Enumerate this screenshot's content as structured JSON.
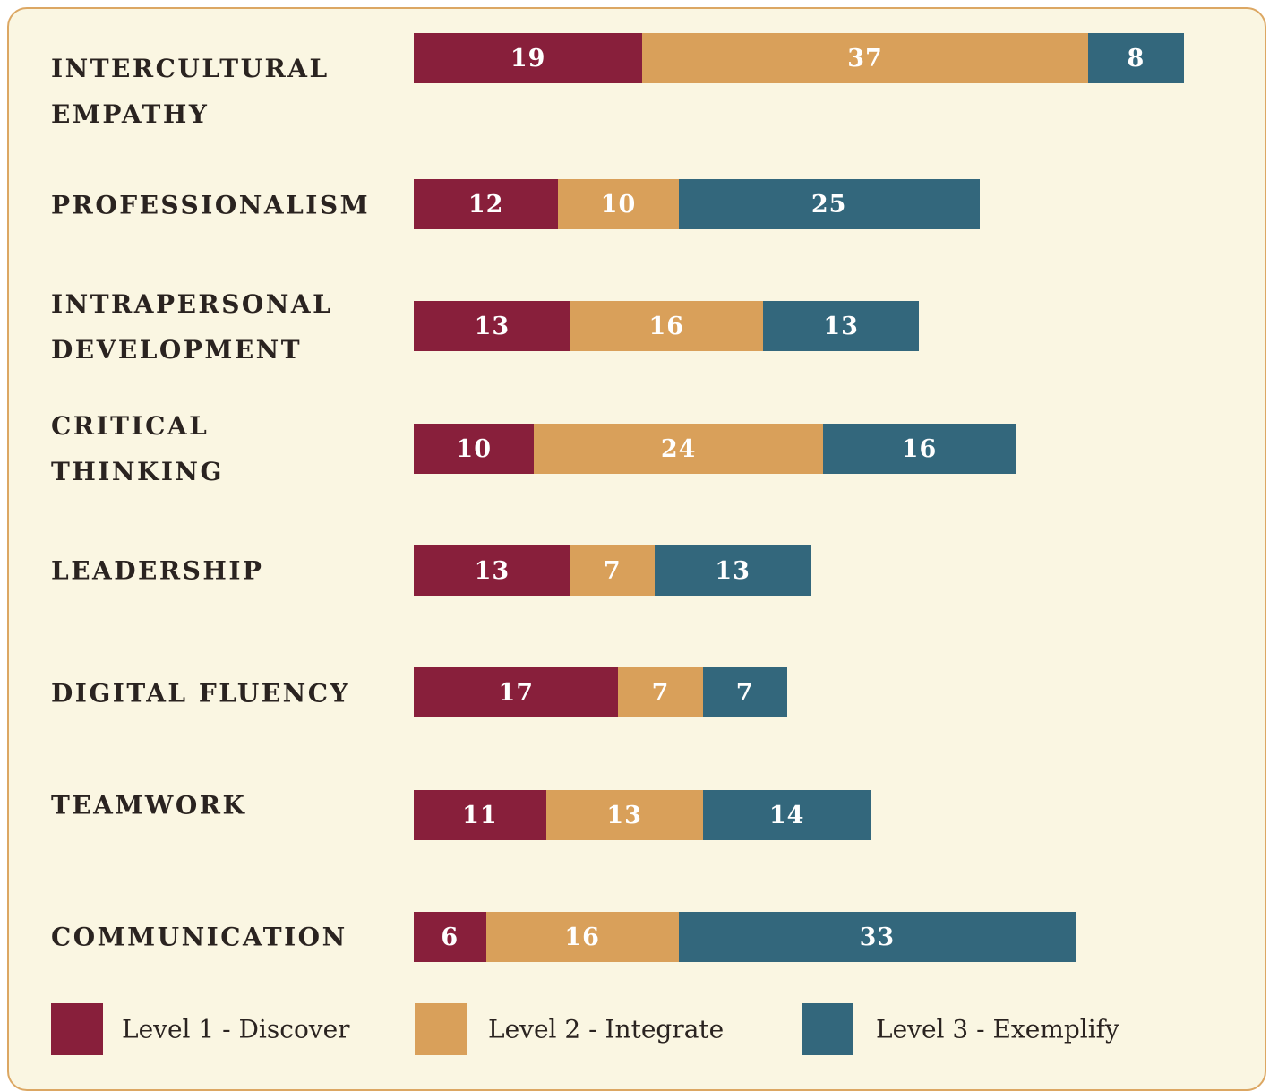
{
  "chart_data": {
    "type": "stacked-bar",
    "categories": [
      "INTERCULTURAL EMPATHY",
      "PROFESSIONALISM",
      "INTRAPERSONAL DEVELOPMENT",
      "CRITICAL THINKING",
      "LEADERSHIP",
      "DIGITAL FLUENCY",
      "TEAMWORK",
      "COMMUNICATION"
    ],
    "series": [
      {
        "name": "Level 1 - Discover",
        "color": "#881f3b",
        "values": [
          19,
          12,
          13,
          10,
          13,
          17,
          11,
          6
        ]
      },
      {
        "name": "Level 2 - Integrate",
        "color": "#d9a05a",
        "values": [
          37,
          10,
          16,
          24,
          7,
          7,
          13,
          16
        ]
      },
      {
        "name": "Level 3 - Exemplify",
        "color": "#33677c",
        "values": [
          8,
          25,
          13,
          16,
          13,
          7,
          14,
          33
        ]
      }
    ]
  }
}
